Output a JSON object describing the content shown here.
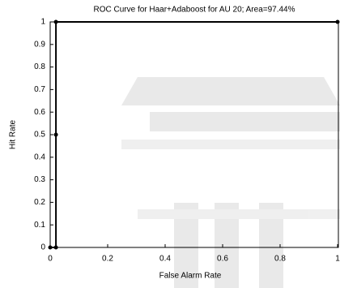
{
  "chart_data": {
    "type": "line",
    "title": "ROC Curve for Haar+Adaboost for AU 20; Area=97.44%",
    "x_label": "False Alarm Rate",
    "y_label": "Hit Rate",
    "series": [
      {
        "color": "#000000",
        "x": [
          0,
          0.02,
          0.02,
          0.02,
          1
        ],
        "values": [
          0,
          0,
          0.5,
          1,
          1
        ]
      }
    ],
    "xlim": [
      0,
      1
    ],
    "ylim": [
      0,
      1
    ],
    "xticks": [
      0,
      0.2,
      0.4,
      0.6,
      0.8,
      1
    ],
    "yticks": [
      0,
      0.1,
      0.2,
      0.3,
      0.4,
      0.5,
      0.6,
      0.7,
      0.8,
      0.9,
      1
    ],
    "grid": false,
    "markers": true
  }
}
